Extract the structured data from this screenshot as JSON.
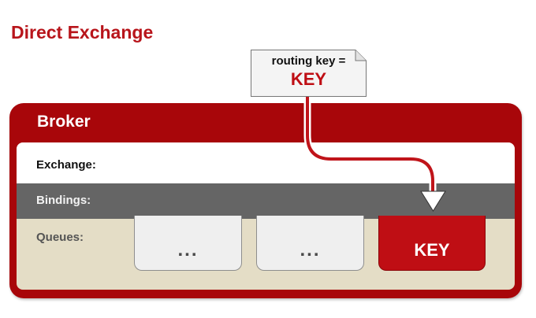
{
  "title": "Direct Exchange",
  "routing_note": {
    "line1": "routing key =",
    "line2": "KEY"
  },
  "broker": {
    "label": "Broker",
    "rows": {
      "exchange": "Exchange:",
      "bindings": "Bindings:",
      "queues": "Queues:"
    },
    "queues": [
      {
        "label": "...",
        "highlighted": false
      },
      {
        "label": "...",
        "highlighted": false
      },
      {
        "label": "KEY",
        "highlighted": true
      }
    ]
  },
  "colors": {
    "title": "#b8151b",
    "broker": "#a8060a",
    "highlight_queue": "#bf0e14",
    "bindings_row": "#656565",
    "queues_area": "#e4ddc6"
  },
  "icons": {
    "route_arrow": "down-triangle-arrow-icon",
    "note_fold": "folded-corner-icon"
  }
}
